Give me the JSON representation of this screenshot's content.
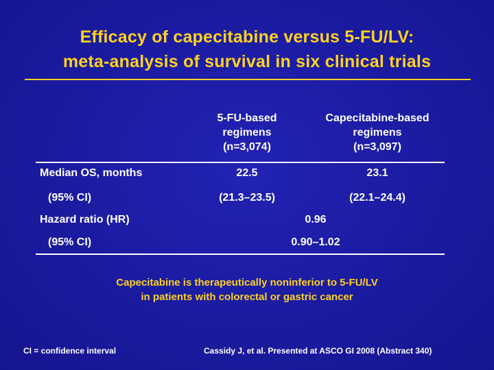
{
  "title": {
    "line1": "Efficacy of capecitabine versus 5-FU/LV:",
    "line2": "meta-analysis of survival in six clinical trials"
  },
  "table": {
    "columns": [
      {
        "line1": "5-FU-based",
        "line2": "regimens",
        "line3": "(n=3,074)"
      },
      {
        "line1": "Capecitabine-based",
        "line2": "regimens",
        "line3": "(n=3,097)"
      }
    ],
    "rows": [
      {
        "label": "Median OS, months",
        "col1": "22.5",
        "col2": "23.1"
      },
      {
        "label": "(95% CI)",
        "col1": "(21.3–23.5)",
        "col2": "(22.1–24.4)"
      },
      {
        "label": "Hazard ratio (HR)",
        "merged": "0.96"
      },
      {
        "label": "(95% CI)",
        "merged": "0.90–1.02"
      }
    ]
  },
  "conclusion": {
    "line1": "Capecitabine is therapeutically noninferior to 5-FU/LV",
    "line2": "in patients with colorectal or gastric cancer"
  },
  "footer": {
    "left": "CI = confidence interval",
    "right": "Cassidy J, et al. Presented at ASCO GI 2008 (Abstract 340)"
  },
  "colors": {
    "background": "#1a1a9c",
    "accent": "#ffd21f",
    "text": "#ffffff"
  }
}
